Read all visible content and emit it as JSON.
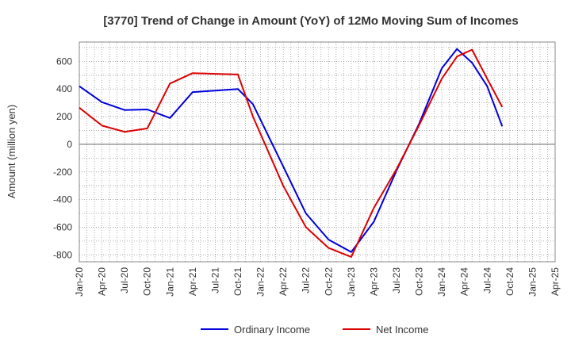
{
  "chart_data": {
    "type": "line",
    "title": "[3770]  Trend of Change in Amount (YoY) of 12Mo Moving Sum of Incomes",
    "ylabel": "Amount (million yen)",
    "xlabel": "",
    "categories": [
      "Jan-20",
      "Apr-20",
      "Jul-20",
      "Oct-20",
      "Jan-21",
      "Apr-21",
      "Jul-21",
      "Oct-21",
      "Jan-22",
      "Apr-22",
      "Jul-22",
      "Oct-22",
      "Jan-23",
      "Apr-23",
      "Jul-23",
      "Oct-23",
      "Jan-24",
      "Apr-24",
      "Jul-24",
      "Oct-24",
      "Jan-25",
      "Apr-25"
    ],
    "ylim": [
      -850,
      740
    ],
    "yticks": [
      -800,
      -600,
      -400,
      -200,
      0,
      200,
      400,
      600
    ],
    "grid": true,
    "legend_position": "bottom",
    "series": [
      {
        "name": "Ordinary Income",
        "color": "#0000dd",
        "points": [
          {
            "x": 0,
            "y": 420
          },
          {
            "x": 1,
            "y": 305
          },
          {
            "x": 2,
            "y": 248
          },
          {
            "x": 3,
            "y": 252
          },
          {
            "x": 4,
            "y": 190
          },
          {
            "x": 5,
            "y": 378
          },
          {
            "x": 6,
            "y": 388
          },
          {
            "x": 7,
            "y": 400
          },
          {
            "x": 7.6667,
            "y": 290
          },
          {
            "x": 9,
            "y": -160
          },
          {
            "x": 10,
            "y": -500
          },
          {
            "x": 11,
            "y": -690
          },
          {
            "x": 12,
            "y": -780
          },
          {
            "x": 13,
            "y": -560
          },
          {
            "x": 14,
            "y": -190
          },
          {
            "x": 15,
            "y": 150
          },
          {
            "x": 16,
            "y": 550
          },
          {
            "x": 16.6667,
            "y": 690
          },
          {
            "x": 17.3333,
            "y": 590
          },
          {
            "x": 18,
            "y": 420
          },
          {
            "x": 18.6667,
            "y": 130
          }
        ]
      },
      {
        "name": "Net Income",
        "color": "#dd0000",
        "points": [
          {
            "x": 0,
            "y": 265
          },
          {
            "x": 1,
            "y": 135
          },
          {
            "x": 2,
            "y": 90
          },
          {
            "x": 3,
            "y": 115
          },
          {
            "x": 4,
            "y": 440
          },
          {
            "x": 5,
            "y": 515
          },
          {
            "x": 6,
            "y": 510
          },
          {
            "x": 7,
            "y": 505
          },
          {
            "x": 7.6667,
            "y": 200
          },
          {
            "x": 9,
            "y": -300
          },
          {
            "x": 10,
            "y": -600
          },
          {
            "x": 11,
            "y": -750
          },
          {
            "x": 12,
            "y": -815
          },
          {
            "x": 13,
            "y": -460
          },
          {
            "x": 14,
            "y": -180
          },
          {
            "x": 15,
            "y": 140
          },
          {
            "x": 16,
            "y": 475
          },
          {
            "x": 16.6667,
            "y": 635
          },
          {
            "x": 17.3333,
            "y": 685
          },
          {
            "x": 18,
            "y": 475
          },
          {
            "x": 18.6667,
            "y": 270
          }
        ]
      }
    ]
  }
}
